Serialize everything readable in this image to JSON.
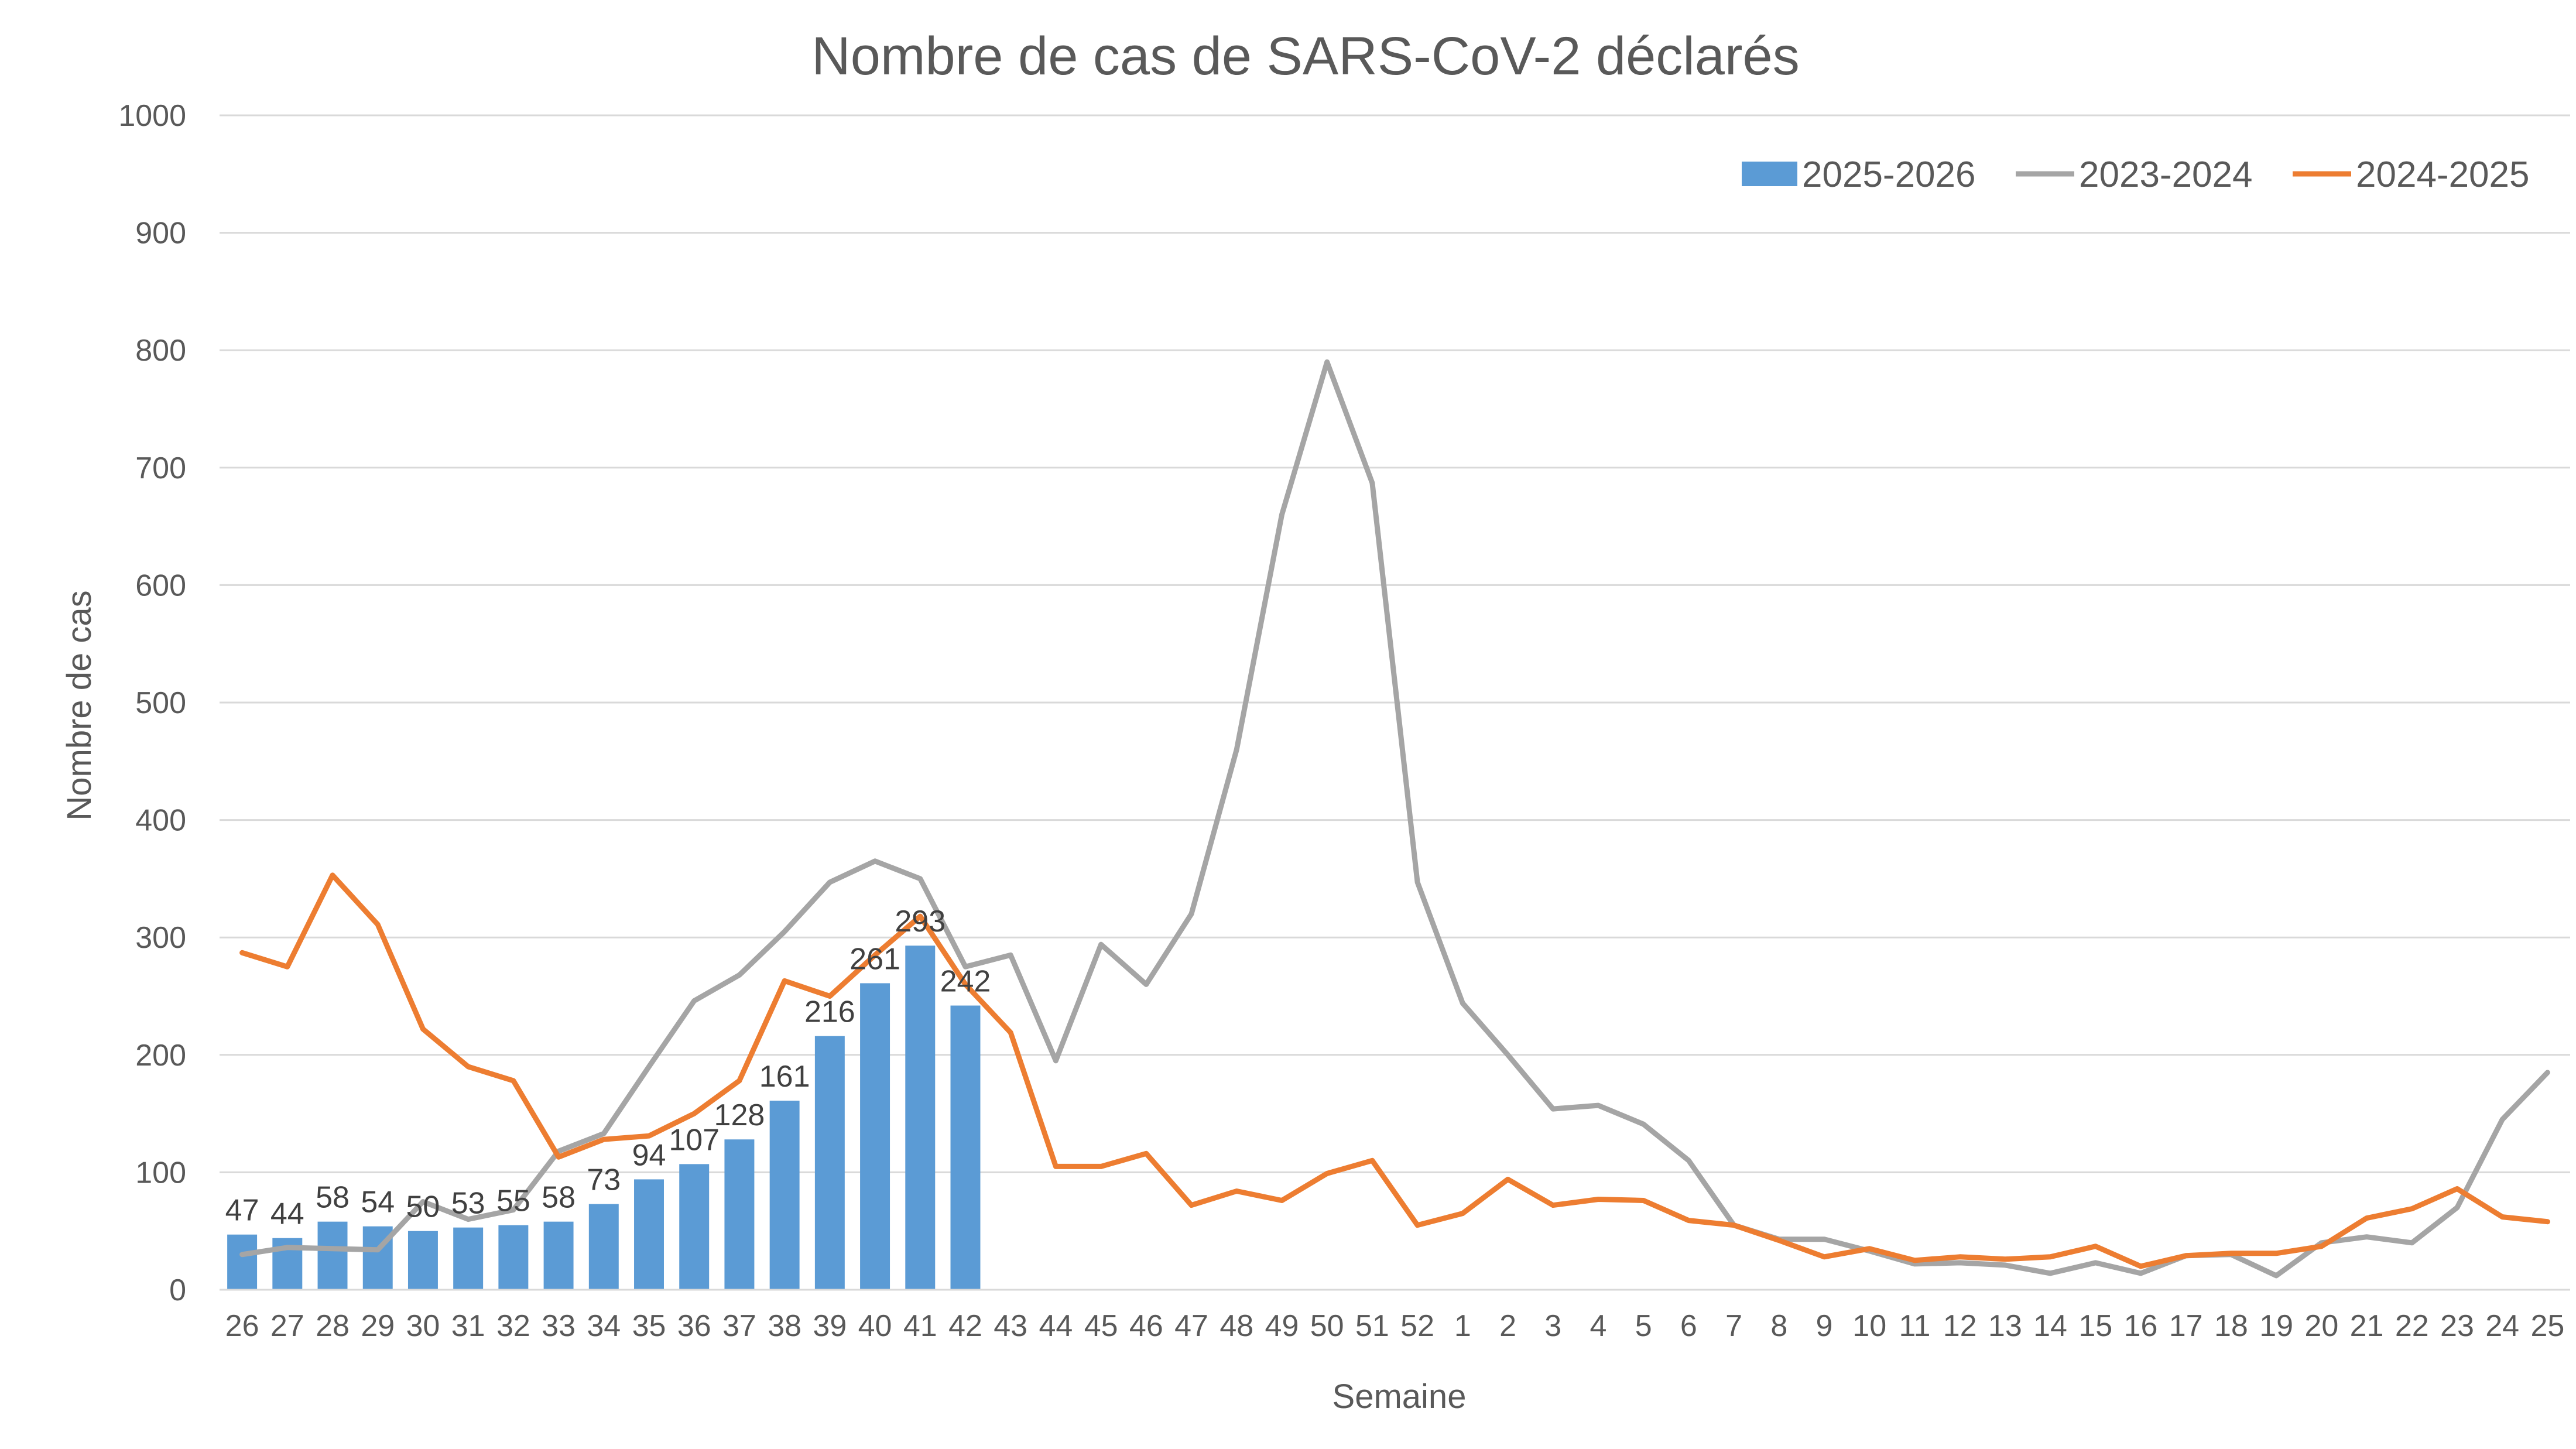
{
  "chart_data": {
    "type": "bar",
    "title": "Nombre de cas de SARS-CoV-2 déclarés",
    "xlabel": "Semaine",
    "ylabel": "Nombre de cas",
    "ylim": [
      0,
      1000
    ],
    "yticks": [
      0,
      100,
      200,
      300,
      400,
      500,
      600,
      700,
      800,
      900,
      1000
    ],
    "grid": "horizontal",
    "legend_position": "top-right",
    "categories": [
      "26",
      "27",
      "28",
      "29",
      "30",
      "31",
      "32",
      "33",
      "34",
      "35",
      "36",
      "37",
      "38",
      "39",
      "40",
      "41",
      "42",
      "43",
      "44",
      "45",
      "46",
      "47",
      "48",
      "49",
      "50",
      "51",
      "52",
      "1",
      "2",
      "3",
      "4",
      "5",
      "6",
      "7",
      "8",
      "9",
      "10",
      "11",
      "12",
      "13",
      "14",
      "15",
      "16",
      "17",
      "18",
      "19",
      "20",
      "21",
      "22",
      "23",
      "24",
      "25"
    ],
    "series": [
      {
        "name": "2025-2026",
        "type": "bar",
        "color": "#5B9BD5",
        "values": [
          47,
          44,
          58,
          54,
          50,
          53,
          55,
          58,
          73,
          94,
          107,
          128,
          161,
          216,
          261,
          293,
          242,
          null,
          null,
          null,
          null,
          null,
          null,
          null,
          null,
          null,
          null,
          null,
          null,
          null,
          null,
          null,
          null,
          null,
          null,
          null,
          null,
          null,
          null,
          null,
          null,
          null,
          null,
          null,
          null,
          null,
          null,
          null,
          null,
          null,
          null,
          null
        ],
        "data_labels": [
          "47",
          "44",
          "58",
          "54",
          "50",
          "53",
          "55",
          "58",
          "73",
          "94",
          "107",
          "128",
          "161",
          "216",
          "261",
          "293",
          "242"
        ]
      },
      {
        "name": "2023-2024",
        "type": "line",
        "color": "#A5A5A5",
        "values": [
          30,
          36,
          35,
          34,
          75,
          60,
          68,
          118,
          133,
          190,
          246,
          268,
          305,
          347,
          365,
          350,
          275,
          285,
          195,
          294,
          260,
          320,
          460,
          660,
          790,
          687,
          347,
          244,
          200,
          154,
          157,
          141,
          110,
          55,
          43,
          43,
          33,
          22,
          23,
          21,
          14,
          23,
          14,
          29,
          30,
          12,
          40,
          45,
          40,
          70,
          145,
          185
        ]
      },
      {
        "name": "2024-2025",
        "type": "line",
        "color": "#ED7D31",
        "values": [
          287,
          275,
          353,
          311,
          222,
          190,
          178,
          113,
          128,
          131,
          150,
          178,
          263,
          250,
          285,
          318,
          260,
          219,
          105,
          105,
          116,
          72,
          84,
          76,
          99,
          110,
          55,
          65,
          94,
          72,
          77,
          76,
          59,
          55,
          42,
          28,
          35,
          25,
          28,
          26,
          28,
          37,
          20,
          29,
          31,
          31,
          37,
          61,
          69,
          86,
          62,
          58
        ]
      }
    ]
  }
}
